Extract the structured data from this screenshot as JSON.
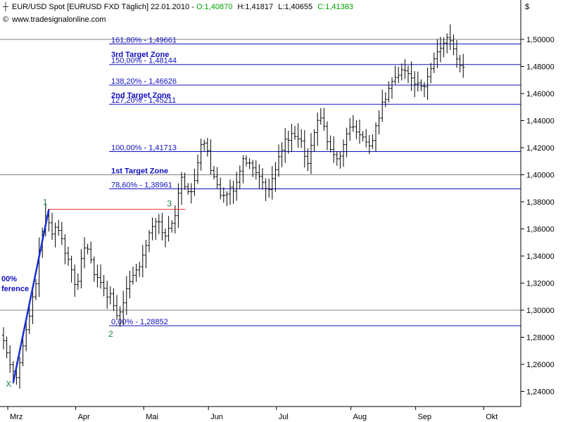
{
  "header": {
    "symbol": "EUR/USD Spot [EURUSD FXD  Täglich] 22.01.2010 - ",
    "open": "O:1,40870",
    "high": "H:1,41817",
    "low": "L:1,40655",
    "close": "C:1,41383",
    "website": "www.tradesignalonline.com",
    "currency_symbol": "$"
  },
  "colors": {
    "levels": "#1010c0",
    "bars": "#000000",
    "impulse": "#1a2fd8",
    "resistance": "#e03030",
    "waves": "#208040",
    "grid": "#808080"
  },
  "chart_data": {
    "type": "bar",
    "ylim": [
      1.23,
      1.51
    ],
    "yticks": [
      {
        "v": 1.5,
        "label": "1,50000"
      },
      {
        "v": 1.48,
        "label": "1,48000"
      },
      {
        "v": 1.46,
        "label": "1,46000"
      },
      {
        "v": 1.44,
        "label": "1,44000"
      },
      {
        "v": 1.42,
        "label": "1,42000"
      },
      {
        "v": 1.4,
        "label": "1,40000"
      },
      {
        "v": 1.38,
        "label": "1,38000"
      },
      {
        "v": 1.36,
        "label": "1,36000"
      },
      {
        "v": 1.34,
        "label": "1,34000"
      },
      {
        "v": 1.32,
        "label": "1,32000"
      },
      {
        "v": 1.3,
        "label": "1,30000"
      },
      {
        "v": 1.28,
        "label": "1,28000"
      },
      {
        "v": 1.26,
        "label": "1,26000"
      },
      {
        "v": 1.24,
        "label": "1,24000"
      }
    ],
    "gridlines": [
      1.5,
      1.4,
      1.3
    ],
    "months": [
      {
        "label": "Mrz",
        "bar": 0
      },
      {
        "label": "Apr",
        "bar": 21
      },
      {
        "label": "Mai",
        "bar": 42
      },
      {
        "label": "Jun",
        "bar": 62
      },
      {
        "label": "Jul",
        "bar": 83
      },
      {
        "label": "Aug",
        "bar": 106
      },
      {
        "label": "Sep",
        "bar": 126
      },
      {
        "label": "Okt",
        "bar": 147
      }
    ],
    "levels": [
      {
        "pct": "161,80%",
        "value": 1.49661,
        "label": "161,80% - 1,49661"
      },
      {
        "pct": "150,00%",
        "value": 1.48144,
        "label": "150,00% - 1,48144"
      },
      {
        "pct": "138,20%",
        "value": 1.46626,
        "label": "138,20% - 1,46626"
      },
      {
        "pct": "127,20%",
        "value": 1.45211,
        "label": "127,20% - 1,45211"
      },
      {
        "pct": "100,00%",
        "value": 1.41713,
        "label": "100,00% - 1,41713"
      },
      {
        "pct": "78,60%",
        "value": 1.38961,
        "label": "78,60% - 1,38961"
      },
      {
        "pct": "0,00%",
        "value": 1.28852,
        "label": "0,00% - 1,28852"
      }
    ],
    "zones": [
      {
        "label": "3rd Target Zone",
        "value": 1.489
      },
      {
        "label": "2nd Target Zone",
        "value": 1.459
      },
      {
        "label": "1st Target Zone",
        "value": 1.403
      }
    ],
    "extension_label": [
      "00%",
      "ference"
    ],
    "wave_points": [
      {
        "label": "1",
        "bar": 13,
        "value": 1.3745
      },
      {
        "label": "2",
        "bar": 35,
        "value": 1.2885
      },
      {
        "label": "3",
        "bar": 54,
        "value": 1.3745
      },
      {
        "label": "X",
        "bar": 2,
        "value": 1.2465
      }
    ],
    "impulse": [
      {
        "bar": 3,
        "value": 1.2465
      },
      {
        "bar": 14,
        "value": 1.3745
      }
    ],
    "resistance": {
      "value": 1.3745,
      "from_bar": 14,
      "to_bar": 54
    },
    "closes": [
      1.2775,
      1.2685,
      1.2598,
      1.2548,
      1.2502,
      1.2612,
      1.2736,
      1.2856,
      1.2956,
      1.3098,
      1.3195,
      1.3442,
      1.358,
      1.3695,
      1.3645,
      1.3562,
      1.3612,
      1.3589,
      1.3528,
      1.3421,
      1.3375,
      1.3298,
      1.3189,
      1.3213,
      1.3381,
      1.3459,
      1.3451,
      1.3373,
      1.3262,
      1.3241,
      1.3205,
      1.3162,
      1.3097,
      1.3121,
      1.3033,
      1.2959,
      1.2987,
      1.3054,
      1.3158,
      1.3211,
      1.3258,
      1.3297,
      1.3321,
      1.3406,
      1.3478,
      1.3571,
      1.3618,
      1.3654,
      1.3652,
      1.3573,
      1.3548,
      1.3605,
      1.3642,
      1.3698,
      1.3864,
      1.3982,
      1.3912,
      1.3875,
      1.3875,
      1.3957,
      1.4089,
      1.4224,
      1.4234,
      1.4179,
      1.4032,
      1.3987,
      1.3926,
      1.3847,
      1.3849,
      1.3858,
      1.3909,
      1.3879,
      1.3945,
      1.4027,
      1.4118,
      1.4087,
      1.4087,
      1.4051,
      1.4015,
      1.3987,
      1.3944,
      1.3898,
      1.3891,
      1.3972,
      1.4038,
      1.4133,
      1.4181,
      1.4263,
      1.4254,
      1.4305,
      1.4283,
      1.4265,
      1.425,
      1.4136,
      1.4083,
      1.4218,
      1.4312,
      1.4402,
      1.442,
      1.4359,
      1.4245,
      1.4187,
      1.4149,
      1.4118,
      1.4138,
      1.4223,
      1.4303,
      1.4351,
      1.4355,
      1.4316,
      1.4295,
      1.4279,
      1.4242,
      1.4213,
      1.4253,
      1.4362,
      1.4419,
      1.4537,
      1.4557,
      1.4639,
      1.469,
      1.4719,
      1.4735,
      1.4775,
      1.4768,
      1.4747,
      1.4715,
      1.4669,
      1.4678,
      1.4654,
      1.4651,
      1.4725,
      1.4784,
      1.4857,
      1.4908,
      1.4935,
      1.4973,
      1.5014,
      1.499,
      1.493,
      1.4855,
      1.4807,
      1.4795
    ]
  }
}
